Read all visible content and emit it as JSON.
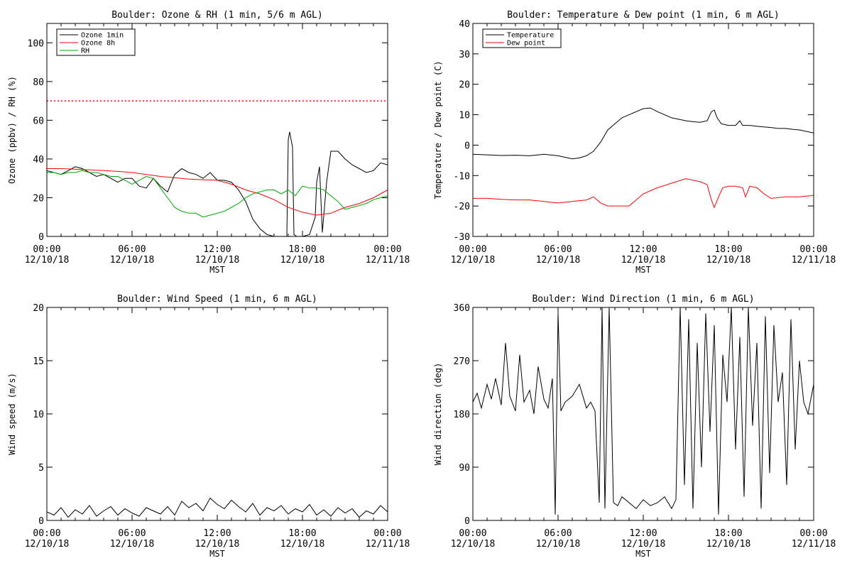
{
  "chart_data": [
    {
      "id": "ozone-rh",
      "type": "line",
      "title": "Boulder: Ozone & RH (1 min, 5/6 m AGL)",
      "xlabel": "MST",
      "ylabel": "Ozone (ppbv) / RH (%)",
      "xlim": [
        0,
        24
      ],
      "ylim": [
        0,
        110
      ],
      "x_ticks": [
        {
          "x": 0,
          "line1": "00:00",
          "line2": "12/10/18"
        },
        {
          "x": 6,
          "line1": "06:00",
          "line2": "12/10/18"
        },
        {
          "x": 12,
          "line1": "12:00",
          "line2": "12/10/18"
        },
        {
          "x": 18,
          "line1": "18:00",
          "line2": "12/10/18"
        },
        {
          "x": 24,
          "line1": "00:00",
          "line2": "12/11/18"
        }
      ],
      "y_ticks": [
        0,
        20,
        40,
        60,
        80,
        100
      ],
      "legend_position": "top-left",
      "reference_line": {
        "y": 70,
        "color": "#ff0000",
        "style": "dotted"
      },
      "series": [
        {
          "name": "Ozone 1min",
          "color": "#000000",
          "x": [
            0,
            0.5,
            1,
            1.5,
            2,
            2.5,
            3,
            3.5,
            4,
            4.5,
            5,
            5.5,
            6,
            6.5,
            7,
            7.5,
            8,
            8.5,
            9,
            9.5,
            10,
            10.5,
            11,
            11.5,
            12,
            12.5,
            13,
            13.5,
            14,
            14.5,
            15,
            15.5,
            16,
            16.5,
            16.9,
            17,
            17.1,
            17.3,
            17.4,
            17.6,
            18,
            18.5,
            18.9,
            19,
            19.2,
            19.4,
            19.7,
            20,
            20.5,
            21,
            21.5,
            22,
            22.5,
            23,
            23.5,
            24
          ],
          "y": [
            34,
            33,
            32,
            34,
            36,
            35,
            33,
            31,
            32,
            30,
            28,
            30,
            30,
            26,
            25,
            30,
            26,
            23,
            32,
            35,
            33,
            32,
            30,
            33,
            29,
            29,
            28,
            24,
            18,
            9,
            4,
            1,
            0,
            0,
            0,
            50,
            54,
            46,
            1,
            0,
            0,
            1,
            10,
            28,
            36,
            2,
            28,
            44,
            44,
            40,
            37,
            35,
            33,
            34,
            38,
            37
          ]
        },
        {
          "name": "Ozone 8h",
          "color": "#ff0000",
          "x": [
            0,
            1,
            2,
            3,
            4,
            5,
            6,
            7,
            8,
            9,
            10,
            11,
            12,
            13,
            14,
            15,
            16,
            17,
            18,
            19,
            20,
            21,
            22,
            23,
            24
          ],
          "y": [
            35,
            35,
            34.7,
            34.4,
            34,
            33.6,
            33,
            32,
            31,
            30.3,
            29.6,
            29.3,
            29,
            27,
            24,
            22,
            19,
            15,
            12.5,
            11,
            12,
            15,
            17,
            20,
            24
          ]
        },
        {
          "name": "RH",
          "color": "#00aa00",
          "x": [
            0,
            0.5,
            1,
            1.5,
            2,
            2.5,
            3,
            3.5,
            4,
            4.5,
            5,
            5.5,
            6,
            6.5,
            7,
            7.5,
            8,
            8.5,
            9,
            9.5,
            10,
            10.5,
            11,
            11.5,
            12,
            12.5,
            13,
            13.5,
            14,
            14.5,
            15,
            15.5,
            16,
            16.5,
            17,
            17.5,
            18,
            18.5,
            19,
            19.5,
            20,
            20.5,
            21,
            21.5,
            22,
            22.5,
            23,
            23.5,
            24
          ],
          "y": [
            33,
            33,
            32,
            33,
            33,
            34,
            33,
            33,
            32,
            31,
            31,
            29,
            27,
            29,
            31,
            30,
            25,
            20,
            15,
            13,
            12,
            12,
            10,
            11,
            12,
            13,
            15,
            17,
            20,
            22,
            23,
            24,
            24,
            22,
            24,
            21,
            26,
            25,
            25,
            24,
            21,
            18,
            14,
            15,
            16,
            17,
            19,
            20,
            21
          ]
        }
      ]
    },
    {
      "id": "temp-dew",
      "type": "line",
      "title": "Boulder: Temperature & Dew point (1 min, 6 m AGL)",
      "xlabel": "MST",
      "ylabel": "Temperature / Dew point (C)",
      "xlim": [
        0,
        24
      ],
      "ylim": [
        -30,
        40
      ],
      "x_ticks": [
        {
          "x": 0,
          "line1": "00:00",
          "line2": "12/10/18"
        },
        {
          "x": 6,
          "line1": "06:00",
          "line2": "12/10/18"
        },
        {
          "x": 12,
          "line1": "12:00",
          "line2": "12/10/18"
        },
        {
          "x": 18,
          "line1": "18:00",
          "line2": "12/10/18"
        },
        {
          "x": 24,
          "line1": "00:00",
          "line2": "12/11/18"
        }
      ],
      "y_ticks": [
        -30,
        -20,
        -10,
        0,
        10,
        20,
        30,
        40
      ],
      "legend_position": "top-left",
      "series": [
        {
          "name": "Temperature",
          "color": "#000000",
          "x": [
            0,
            1,
            2,
            3,
            4,
            5,
            6,
            7,
            7.5,
            8,
            8.5,
            9,
            9.5,
            10,
            10.5,
            11,
            11.5,
            12,
            12.5,
            13,
            13.5,
            14,
            14.5,
            15,
            15.5,
            16,
            16.5,
            16.8,
            17,
            17.2,
            17.5,
            18,
            18.5,
            18.8,
            19,
            19.5,
            20,
            20.5,
            21,
            21.5,
            22,
            22.5,
            23,
            23.5,
            24
          ],
          "y": [
            -3,
            -3.2,
            -3.4,
            -3.3,
            -3.5,
            -3,
            -3.5,
            -4.5,
            -4.2,
            -3.5,
            -2,
            1,
            5,
            7,
            9,
            10,
            11,
            12,
            12.2,
            11,
            10,
            9,
            8.5,
            8,
            7.7,
            7.5,
            8,
            11,
            11.5,
            9,
            7,
            6.5,
            6.5,
            8,
            6.5,
            6.5,
            6.2,
            6,
            5.8,
            5.5,
            5.5,
            5.2,
            5,
            4.5,
            4
          ]
        },
        {
          "name": "Dew point",
          "color": "#ff0000",
          "x": [
            0,
            1,
            2,
            3,
            4,
            5,
            6,
            7,
            8,
            8.5,
            9,
            9.5,
            10,
            11,
            11.5,
            12,
            13,
            14,
            15,
            16,
            16.5,
            16.8,
            17,
            17.3,
            17.6,
            18,
            18.5,
            19,
            19.2,
            19.5,
            20,
            20.5,
            21,
            22,
            23,
            24
          ],
          "y": [
            -17.5,
            -17.5,
            -17.8,
            -18,
            -18,
            -18.5,
            -19,
            -18.5,
            -18,
            -17,
            -19,
            -20,
            -20,
            -20,
            -18,
            -16,
            -14,
            -12.5,
            -11,
            -12,
            -13,
            -18,
            -20.5,
            -17,
            -14,
            -13.5,
            -13.5,
            -14,
            -17,
            -13.5,
            -14,
            -16,
            -17.5,
            -17,
            -17,
            -16.5
          ]
        }
      ]
    },
    {
      "id": "wind-speed",
      "type": "line",
      "title": "Boulder: Wind Speed (1 min, 6 m AGL)",
      "xlabel": "MST",
      "ylabel": "Wind speed (m/s)",
      "xlim": [
        0,
        24
      ],
      "ylim": [
        0,
        20
      ],
      "x_ticks": [
        {
          "x": 0,
          "line1": "00:00",
          "line2": "12/10/18"
        },
        {
          "x": 6,
          "line1": "06:00",
          "line2": "12/10/18"
        },
        {
          "x": 12,
          "line1": "12:00",
          "line2": "12/10/18"
        },
        {
          "x": 18,
          "line1": "18:00",
          "line2": "12/10/18"
        },
        {
          "x": 24,
          "line1": "00:00",
          "line2": "12/11/18"
        }
      ],
      "y_ticks": [
        0,
        5,
        10,
        15,
        20
      ],
      "series": [
        {
          "name": "",
          "color": "#000000",
          "x": [
            0,
            0.5,
            1,
            1.5,
            2,
            2.5,
            3,
            3.5,
            4,
            4.5,
            5,
            5.5,
            6,
            6.5,
            7,
            7.5,
            8,
            8.5,
            9,
            9.5,
            10,
            10.5,
            11,
            11.5,
            12,
            12.5,
            13,
            13.5,
            14,
            14.5,
            15,
            15.5,
            16,
            16.5,
            17,
            17.5,
            18,
            18.5,
            19,
            19.5,
            20,
            20.5,
            21,
            21.5,
            22,
            22.5,
            23,
            23.5,
            24
          ],
          "y": [
            0.8,
            0.5,
            1.2,
            0.3,
            1,
            0.6,
            1.4,
            0.4,
            0.9,
            1.3,
            0.5,
            1.1,
            0.7,
            0.4,
            1.2,
            0.9,
            0.6,
            1.3,
            0.5,
            1.8,
            1.2,
            1.6,
            0.9,
            2.1,
            1.5,
            1.1,
            1.9,
            1.3,
            0.8,
            1.6,
            0.5,
            1.2,
            0.9,
            1.4,
            0.6,
            1.1,
            0.8,
            1.5,
            0.5,
            1,
            0.4,
            1.2,
            0.7,
            1.1,
            0.3,
            0.9,
            0.6,
            1.4,
            0.8
          ]
        }
      ]
    },
    {
      "id": "wind-direction",
      "type": "line",
      "title": "Boulder: Wind Direction (1 min, 6 m AGL)",
      "xlabel": "MST",
      "ylabel": "Wind direction (deg)",
      "xlim": [
        0,
        24
      ],
      "ylim": [
        0,
        360
      ],
      "x_ticks": [
        {
          "x": 0,
          "line1": "00:00",
          "line2": "12/10/18"
        },
        {
          "x": 6,
          "line1": "06:00",
          "line2": "12/10/18"
        },
        {
          "x": 12,
          "line1": "12:00",
          "line2": "12/10/18"
        },
        {
          "x": 18,
          "line1": "18:00",
          "line2": "12/10/18"
        },
        {
          "x": 24,
          "line1": "00:00",
          "line2": "12/11/18"
        }
      ],
      "y_ticks": [
        0,
        90,
        180,
        270,
        360
      ],
      "series": [
        {
          "name": "",
          "color": "#000000",
          "x": [
            0,
            0.3,
            0.6,
            1,
            1.3,
            1.6,
            2,
            2.3,
            2.6,
            3,
            3.3,
            3.6,
            4,
            4.3,
            4.6,
            5,
            5.3,
            5.6,
            5.8,
            6,
            6.2,
            6.5,
            7,
            7.5,
            8,
            8.3,
            8.6,
            8.9,
            9.1,
            9.3,
            9.6,
            9.9,
            10.2,
            10.5,
            11,
            11.5,
            12,
            12.5,
            13,
            13.5,
            14,
            14.3,
            14.6,
            14.9,
            15.2,
            15.5,
            15.8,
            16.1,
            16.4,
            16.7,
            17,
            17.3,
            17.6,
            17.9,
            18.2,
            18.5,
            18.8,
            19.1,
            19.4,
            19.7,
            20,
            20.3,
            20.6,
            20.9,
            21.2,
            21.5,
            21.8,
            22.1,
            22.4,
            22.7,
            23,
            23.3,
            23.6,
            24
          ],
          "y": [
            200,
            215,
            190,
            230,
            205,
            240,
            195,
            300,
            210,
            185,
            280,
            200,
            220,
            180,
            260,
            205,
            190,
            240,
            10,
            350,
            185,
            200,
            210,
            230,
            190,
            200,
            185,
            30,
            360,
            20,
            360,
            30,
            25,
            40,
            30,
            20,
            35,
            25,
            30,
            40,
            20,
            35,
            360,
            60,
            340,
            20,
            300,
            90,
            350,
            150,
            330,
            10,
            280,
            200,
            360,
            120,
            310,
            40,
            360,
            160,
            300,
            20,
            345,
            80,
            330,
            200,
            250,
            60,
            340,
            120,
            270,
            200,
            180,
            230
          ]
        }
      ]
    }
  ]
}
